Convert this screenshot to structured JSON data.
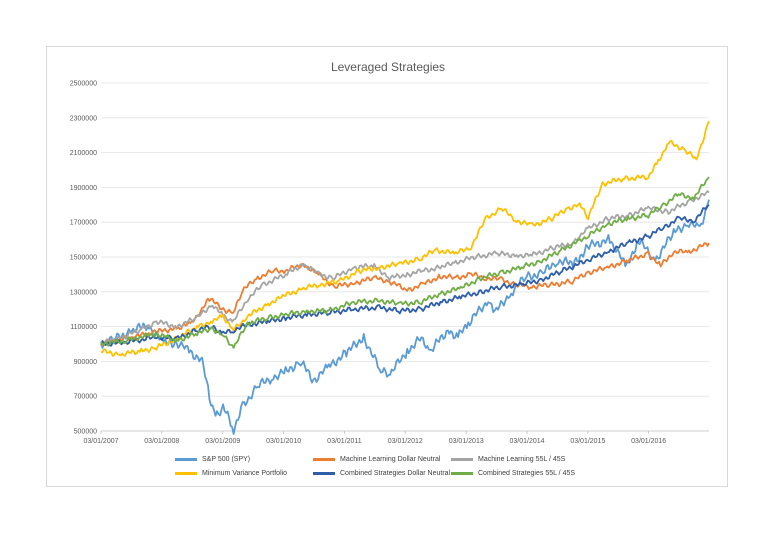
{
  "chart_data": {
    "type": "line",
    "title": "Leveraged Strategies",
    "xlabel": "",
    "ylabel": "",
    "x_ticks": [
      "03/01/2007",
      "03/01/2008",
      "03/01/2009",
      "03/01/2010",
      "03/01/2011",
      "03/01/2012",
      "03/01/2013",
      "03/01/2014",
      "03/01/2015",
      "03/01/2016"
    ],
    "y_ticks": [
      500000,
      700000,
      900000,
      1100000,
      1300000,
      1500000,
      1700000,
      1900000,
      2100000,
      2300000,
      2500000
    ],
    "ylim": [
      500000,
      2500000
    ],
    "xlim": [
      "2007-01-03",
      "2016-12-30"
    ],
    "grid": "horizontal",
    "legend_position": "bottom",
    "series": [
      {
        "name": "S&P 500 (SPY)",
        "color": "#5b9bd5",
        "points": [
          [
            "2007-01-03",
            1000000
          ],
          [
            "2007-04-01",
            1030000
          ],
          [
            "2007-07-15",
            1080000
          ],
          [
            "2007-10-10",
            1110000
          ],
          [
            "2008-01-15",
            1000000
          ],
          [
            "2008-04-01",
            1010000
          ],
          [
            "2008-06-15",
            960000
          ],
          [
            "2008-09-01",
            900000
          ],
          [
            "2008-10-15",
            700000
          ],
          [
            "2008-11-20",
            580000
          ],
          [
            "2009-01-05",
            640000
          ],
          [
            "2009-03-09",
            510000
          ],
          [
            "2009-05-01",
            640000
          ],
          [
            "2009-08-01",
            760000
          ],
          [
            "2009-11-01",
            810000
          ],
          [
            "2010-01-15",
            840000
          ],
          [
            "2010-04-15",
            900000
          ],
          [
            "2010-07-01",
            790000
          ],
          [
            "2010-10-01",
            870000
          ],
          [
            "2011-01-15",
            950000
          ],
          [
            "2011-04-29",
            1040000
          ],
          [
            "2011-08-10",
            840000
          ],
          [
            "2011-10-04",
            830000
          ],
          [
            "2012-01-15",
            960000
          ],
          [
            "2012-04-01",
            1030000
          ],
          [
            "2012-06-01",
            960000
          ],
          [
            "2012-09-15",
            1080000
          ],
          [
            "2012-11-15",
            1040000
          ],
          [
            "2013-01-15",
            1120000
          ],
          [
            "2013-05-15",
            1250000
          ],
          [
            "2013-06-24",
            1180000
          ],
          [
            "2013-10-01",
            1300000
          ],
          [
            "2014-01-02",
            1390000
          ],
          [
            "2014-04-01",
            1400000
          ],
          [
            "2014-07-01",
            1480000
          ],
          [
            "2014-10-15",
            1460000
          ],
          [
            "2015-01-01",
            1560000
          ],
          [
            "2015-05-15",
            1600000
          ],
          [
            "2015-08-25",
            1440000
          ],
          [
            "2015-11-01",
            1600000
          ],
          [
            "2016-02-11",
            1480000
          ],
          [
            "2016-06-01",
            1640000
          ],
          [
            "2016-09-01",
            1700000
          ],
          [
            "2016-11-04",
            1660000
          ],
          [
            "2016-12-30",
            1830000
          ]
        ]
      },
      {
        "name": "Machine Learning  Dollar Neutral",
        "color": "#ed7d31",
        "points": [
          [
            "2007-01-03",
            1000000
          ],
          [
            "2007-06-01",
            1030000
          ],
          [
            "2007-12-01",
            1070000
          ],
          [
            "2008-04-01",
            1090000
          ],
          [
            "2008-07-01",
            1120000
          ],
          [
            "2008-10-15",
            1260000
          ],
          [
            "2009-01-05",
            1200000
          ],
          [
            "2009-03-09",
            1180000
          ],
          [
            "2009-05-01",
            1310000
          ],
          [
            "2009-08-01",
            1380000
          ],
          [
            "2009-11-01",
            1420000
          ],
          [
            "2010-01-15",
            1420000
          ],
          [
            "2010-05-01",
            1460000
          ],
          [
            "2010-08-01",
            1400000
          ],
          [
            "2010-11-01",
            1330000
          ],
          [
            "2011-03-01",
            1350000
          ],
          [
            "2011-07-01",
            1380000
          ],
          [
            "2011-10-01",
            1360000
          ],
          [
            "2012-01-15",
            1310000
          ],
          [
            "2012-04-15",
            1340000
          ],
          [
            "2012-08-01",
            1390000
          ],
          [
            "2012-11-01",
            1380000
          ],
          [
            "2013-02-01",
            1400000
          ],
          [
            "2013-05-01",
            1380000
          ],
          [
            "2013-08-01",
            1370000
          ],
          [
            "2013-11-01",
            1340000
          ],
          [
            "2014-02-01",
            1330000
          ],
          [
            "2014-06-01",
            1340000
          ],
          [
            "2014-10-01",
            1360000
          ],
          [
            "2015-01-01",
            1410000
          ],
          [
            "2015-05-01",
            1440000
          ],
          [
            "2015-09-01",
            1480000
          ],
          [
            "2016-01-01",
            1520000
          ],
          [
            "2016-03-15",
            1450000
          ],
          [
            "2016-06-01",
            1530000
          ],
          [
            "2016-09-01",
            1530000
          ],
          [
            "2016-12-30",
            1580000
          ]
        ]
      },
      {
        "name": "Machine Learning 55L / 45S",
        "color": "#a5a5a5",
        "points": [
          [
            "2007-01-03",
            1000000
          ],
          [
            "2007-05-01",
            1040000
          ],
          [
            "2007-09-01",
            1080000
          ],
          [
            "2007-12-01",
            1130000
          ],
          [
            "2008-04-01",
            1100000
          ],
          [
            "2008-08-01",
            1150000
          ],
          [
            "2008-11-01",
            1230000
          ],
          [
            "2009-01-05",
            1160000
          ],
          [
            "2009-03-09",
            1130000
          ],
          [
            "2009-06-01",
            1260000
          ],
          [
            "2009-09-01",
            1340000
          ],
          [
            "2010-01-15",
            1400000
          ],
          [
            "2010-05-01",
            1460000
          ],
          [
            "2010-08-01",
            1400000
          ],
          [
            "2010-11-01",
            1380000
          ],
          [
            "2011-03-01",
            1440000
          ],
          [
            "2011-07-01",
            1450000
          ],
          [
            "2011-10-01",
            1380000
          ],
          [
            "2012-01-15",
            1400000
          ],
          [
            "2012-04-15",
            1420000
          ],
          [
            "2012-08-01",
            1440000
          ],
          [
            "2012-11-01",
            1470000
          ],
          [
            "2013-03-01",
            1500000
          ],
          [
            "2013-07-01",
            1520000
          ],
          [
            "2013-11-01",
            1510000
          ],
          [
            "2014-02-01",
            1510000
          ],
          [
            "2014-06-01",
            1550000
          ],
          [
            "2014-10-01",
            1580000
          ],
          [
            "2015-01-01",
            1660000
          ],
          [
            "2015-05-01",
            1720000
          ],
          [
            "2015-09-01",
            1740000
          ],
          [
            "2016-01-01",
            1780000
          ],
          [
            "2016-05-01",
            1760000
          ],
          [
            "2016-09-01",
            1820000
          ],
          [
            "2016-12-30",
            1870000
          ]
        ]
      },
      {
        "name": "Minimum Variance Portfolio",
        "color": "#ffc000",
        "points": [
          [
            "2007-01-03",
            960000
          ],
          [
            "2007-05-01",
            940000
          ],
          [
            "2007-09-01",
            960000
          ],
          [
            "2007-12-01",
            980000
          ],
          [
            "2008-04-01",
            1030000
          ],
          [
            "2008-08-01",
            1100000
          ],
          [
            "2008-11-01",
            1130000
          ],
          [
            "2009-01-05",
            1160000
          ],
          [
            "2009-03-09",
            1080000
          ],
          [
            "2009-06-01",
            1160000
          ],
          [
            "2009-10-01",
            1230000
          ],
          [
            "2010-01-15",
            1280000
          ],
          [
            "2010-05-01",
            1320000
          ],
          [
            "2010-08-01",
            1340000
          ],
          [
            "2010-12-01",
            1360000
          ],
          [
            "2011-04-01",
            1420000
          ],
          [
            "2011-08-01",
            1440000
          ],
          [
            "2011-12-01",
            1460000
          ],
          [
            "2012-04-01",
            1490000
          ],
          [
            "2012-07-01",
            1540000
          ],
          [
            "2012-11-01",
            1520000
          ],
          [
            "2013-02-01",
            1560000
          ],
          [
            "2013-05-01",
            1720000
          ],
          [
            "2013-08-01",
            1780000
          ],
          [
            "2013-11-01",
            1710000
          ],
          [
            "2014-02-01",
            1680000
          ],
          [
            "2014-06-01",
            1720000
          ],
          [
            "2014-09-01",
            1780000
          ],
          [
            "2014-11-15",
            1800000
          ],
          [
            "2015-01-05",
            1730000
          ],
          [
            "2015-04-01",
            1920000
          ],
          [
            "2015-08-01",
            1950000
          ],
          [
            "2016-01-01",
            1960000
          ],
          [
            "2016-03-01",
            2050000
          ],
          [
            "2016-05-01",
            2160000
          ],
          [
            "2016-08-01",
            2120000
          ],
          [
            "2016-10-15",
            2060000
          ],
          [
            "2016-12-30",
            2280000
          ]
        ]
      },
      {
        "name": "Combined Strategies Dollar Neutral",
        "color": "#2e5daa",
        "points": [
          [
            "2007-01-03",
            1000000
          ],
          [
            "2007-06-01",
            1010000
          ],
          [
            "2007-12-01",
            1040000
          ],
          [
            "2008-04-01",
            1030000
          ],
          [
            "2008-08-01",
            1080000
          ],
          [
            "2008-11-01",
            1100000
          ],
          [
            "2009-01-05",
            1060000
          ],
          [
            "2009-03-09",
            1080000
          ],
          [
            "2009-06-01",
            1110000
          ],
          [
            "2009-10-01",
            1130000
          ],
          [
            "2010-01-15",
            1150000
          ],
          [
            "2010-06-01",
            1170000
          ],
          [
            "2010-10-01",
            1180000
          ],
          [
            "2011-03-01",
            1200000
          ],
          [
            "2011-08-01",
            1210000
          ],
          [
            "2011-12-01",
            1190000
          ],
          [
            "2012-04-01",
            1200000
          ],
          [
            "2012-08-01",
            1240000
          ],
          [
            "2012-12-01",
            1270000
          ],
          [
            "2013-04-01",
            1300000
          ],
          [
            "2013-08-01",
            1330000
          ],
          [
            "2013-12-01",
            1340000
          ],
          [
            "2014-04-01",
            1370000
          ],
          [
            "2014-08-01",
            1420000
          ],
          [
            "2015-01-01",
            1480000
          ],
          [
            "2015-05-01",
            1530000
          ],
          [
            "2015-09-01",
            1580000
          ],
          [
            "2016-01-01",
            1620000
          ],
          [
            "2016-04-01",
            1670000
          ],
          [
            "2016-07-01",
            1720000
          ],
          [
            "2016-10-01",
            1710000
          ],
          [
            "2016-12-30",
            1800000
          ]
        ]
      },
      {
        "name": "Combined Strategies 55L / 45S",
        "color": "#70ad47",
        "points": [
          [
            "2007-01-03",
            1000000
          ],
          [
            "2007-06-01",
            1020000
          ],
          [
            "2007-12-01",
            1060000
          ],
          [
            "2008-04-01",
            1020000
          ],
          [
            "2008-08-01",
            1060000
          ],
          [
            "2008-11-01",
            1090000
          ],
          [
            "2009-01-05",
            1050000
          ],
          [
            "2009-03-09",
            980000
          ],
          [
            "2009-06-01",
            1120000
          ],
          [
            "2009-10-01",
            1150000
          ],
          [
            "2010-01-15",
            1170000
          ],
          [
            "2010-06-01",
            1190000
          ],
          [
            "2010-10-01",
            1190000
          ],
          [
            "2011-03-01",
            1240000
          ],
          [
            "2011-08-01",
            1250000
          ],
          [
            "2011-12-01",
            1230000
          ],
          [
            "2012-04-01",
            1240000
          ],
          [
            "2012-08-01",
            1290000
          ],
          [
            "2012-12-01",
            1320000
          ],
          [
            "2013-04-01",
            1380000
          ],
          [
            "2013-08-01",
            1410000
          ],
          [
            "2013-12-01",
            1440000
          ],
          [
            "2014-04-01",
            1480000
          ],
          [
            "2014-08-01",
            1540000
          ],
          [
            "2015-01-01",
            1620000
          ],
          [
            "2015-05-01",
            1690000
          ],
          [
            "2015-09-01",
            1720000
          ],
          [
            "2016-01-01",
            1740000
          ],
          [
            "2016-04-01",
            1800000
          ],
          [
            "2016-07-01",
            1860000
          ],
          [
            "2016-10-01",
            1840000
          ],
          [
            "2016-12-30",
            1960000
          ]
        ]
      }
    ]
  }
}
